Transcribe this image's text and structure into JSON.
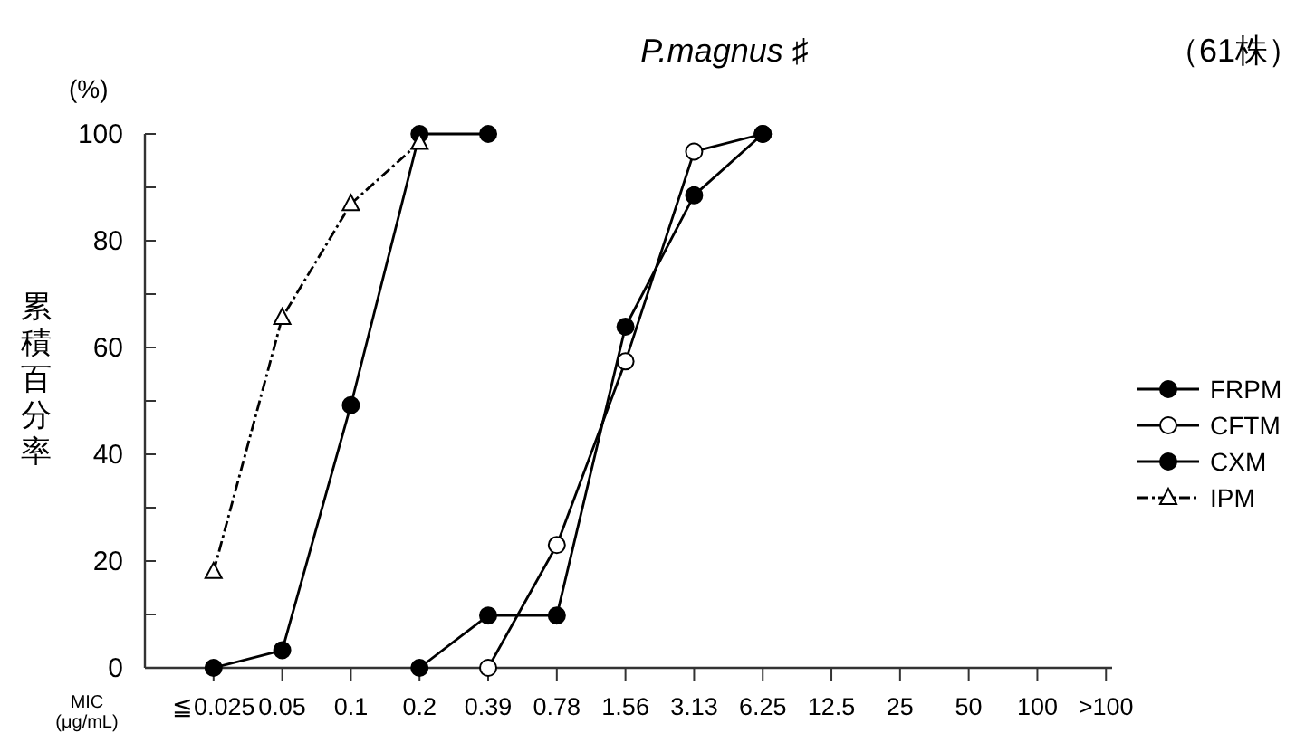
{
  "chart_data": {
    "type": "line",
    "title": "P.magnus ♯",
    "subtitle": "（61株）",
    "ylabel": "累積百分率",
    "xlabel": "MIC\n(μg/mL)",
    "annotations": [
      "(%)"
    ],
    "categories": [
      "≦0.025",
      "0.05",
      "0.1",
      "0.2",
      "0.39",
      "0.78",
      "1.56",
      "3.13",
      "6.25",
      "12.5",
      "25",
      "50",
      "100",
      ">100"
    ],
    "ylim": [
      0,
      100
    ],
    "yticks": [
      0,
      {
        "value": 10,
        "label": null
      },
      20,
      {
        "value": 30,
        "label": null
      },
      40,
      {
        "value": 50,
        "label": null
      },
      60,
      {
        "value": 70,
        "label": null
      },
      80,
      {
        "value": 90,
        "label": null
      },
      100
    ],
    "grid": false,
    "legend": "right",
    "series": [
      {
        "name": "FRPM",
        "color": "#000000",
        "marker": "circle",
        "line_style": "solid",
        "values": [
          0,
          3.3,
          49.2,
          100,
          100,
          null,
          null,
          null,
          null,
          null,
          null,
          null,
          null,
          null
        ]
      },
      {
        "name": "CFTM",
        "color": "#000000",
        "marker": "circle_open",
        "line_style": "solid",
        "values": [
          null,
          null,
          null,
          null,
          0,
          23.0,
          57.4,
          96.7,
          100,
          null,
          null,
          null,
          null,
          null
        ]
      },
      {
        "name": "CXM",
        "color": "#000000",
        "marker": "circle",
        "line_style": "solid",
        "values": [
          null,
          null,
          null,
          0,
          9.8,
          9.8,
          63.9,
          88.5,
          100,
          null,
          null,
          null,
          null,
          null
        ]
      },
      {
        "name": "IPM",
        "color": "#000000",
        "marker": "triangle_open",
        "line_style": "dashdot",
        "values": [
          18.0,
          65.6,
          86.9,
          98.4,
          null,
          null,
          null,
          null,
          null,
          null,
          null,
          null,
          null,
          null
        ]
      }
    ]
  }
}
